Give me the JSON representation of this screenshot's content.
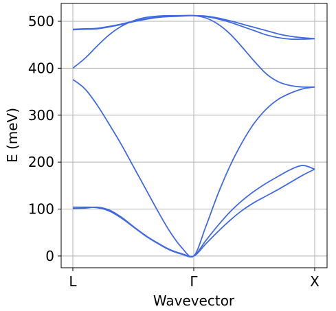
{
  "chart_data": {
    "type": "line",
    "xlabel": "Wavevector",
    "ylabel": "E (meV)",
    "x_ticks": [
      "L",
      "Γ",
      "X"
    ],
    "ylim": [
      -25,
      538
    ],
    "y_ticks": [
      0,
      100,
      200,
      300,
      400,
      500
    ],
    "grid": true,
    "legend": "none",
    "line_color": "#4169e1",
    "x": [
      0,
      0.1,
      0.2,
      0.3,
      0.4,
      0.5,
      0.6,
      0.7,
      0.8,
      0.9,
      1.0,
      1.1,
      1.2,
      1.3,
      1.4,
      1.5,
      1.6,
      1.7,
      1.8,
      1.9,
      2.0
    ],
    "series": [
      {
        "values": [
          101,
          102,
          104,
          98,
          83,
          63,
          44,
          28,
          14,
          5,
          0,
          26,
          52,
          76,
          97,
          114,
          128,
          142,
          157,
          172,
          185
        ]
      },
      {
        "values": [
          104,
          104,
          103,
          96,
          81,
          62,
          43,
          27,
          13,
          4,
          0,
          33,
          65,
          94,
          118,
          138,
          155,
          170,
          184,
          193,
          185
        ]
      },
      {
        "values": [
          376,
          356,
          322,
          281,
          238,
          191,
          144,
          97,
          53,
          18,
          0,
          63,
          132,
          192,
          242,
          283,
          313,
          334,
          347,
          356,
          360
        ]
      },
      {
        "values": [
          400,
          421,
          447,
          471,
          489,
          501,
          508,
          511,
          512,
          512,
          512,
          507,
          494,
          473,
          445,
          415,
          388,
          371,
          363,
          360,
          360
        ]
      },
      {
        "values": [
          482,
          483,
          484,
          488,
          493,
          499,
          504,
          508,
          510,
          511,
          512,
          510,
          505,
          498,
          489,
          480,
          471,
          465,
          462,
          462,
          463
        ]
      },
      {
        "values": [
          483,
          484,
          485,
          489,
          494,
          500,
          505,
          509,
          511,
          512,
          512,
          511,
          507,
          501,
          494,
          487,
          480,
          473,
          468,
          465,
          463
        ]
      }
    ]
  }
}
